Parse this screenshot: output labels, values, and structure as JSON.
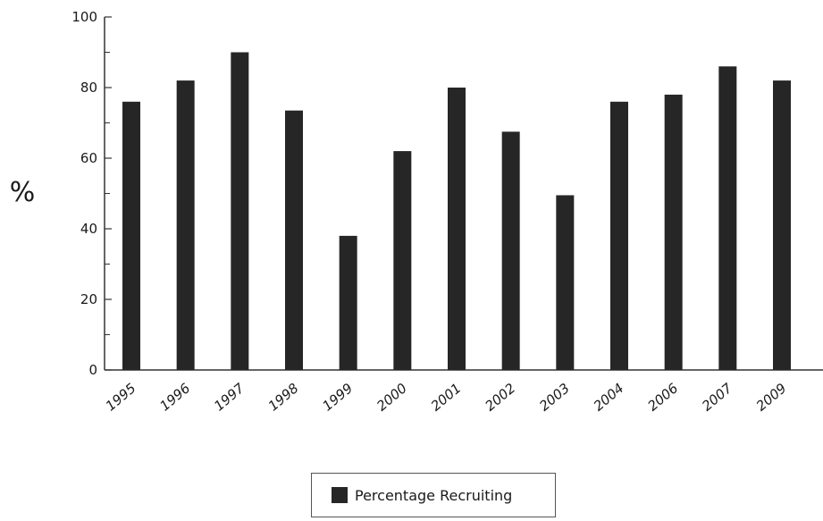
{
  "chart_data": {
    "type": "bar",
    "categories": [
      "1995",
      "1996",
      "1997",
      "1998",
      "1999",
      "2000",
      "2001",
      "2002",
      "2003",
      "2004",
      "2006",
      "2007",
      "2009"
    ],
    "series": [
      {
        "name": "Percentage Recruiting",
        "values": [
          76,
          82,
          90,
          73.5,
          38,
          62,
          80,
          67.5,
          49.5,
          76,
          78,
          86,
          82
        ],
        "color": "#262626"
      }
    ],
    "ylabel": "%",
    "ylim": [
      0,
      100
    ],
    "yticks": [
      0,
      20,
      40,
      60,
      80,
      100
    ],
    "grid": false,
    "legend": "bottom-center"
  }
}
